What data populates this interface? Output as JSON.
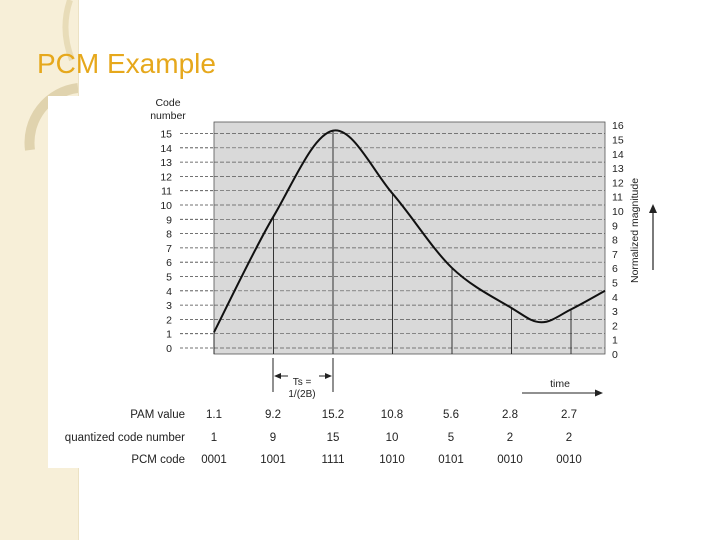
{
  "slide": {
    "title": "PCM Example",
    "colors": {
      "title": "#e6a81c",
      "band": "#f7efd8",
      "grid_fill": "#d9d9d9"
    }
  },
  "diagram": {
    "left_axis_title_line1": "Code",
    "left_axis_title_line2": "number",
    "left_ticks": [
      "0",
      "1",
      "2",
      "3",
      "4",
      "5",
      "6",
      "7",
      "8",
      "9",
      "10",
      "11",
      "12",
      "13",
      "14",
      "15"
    ],
    "right_ticks": [
      "0",
      "1",
      "2",
      "3",
      "4",
      "5",
      "6",
      "7",
      "8",
      "9",
      "10",
      "11",
      "12",
      "13",
      "14",
      "15",
      "16"
    ],
    "right_axis_label": "Normalized magnitude",
    "time_label": "time",
    "ts_label_line1": "Ts =",
    "ts_label_line2": "1/(2B)",
    "curve_samples": [
      {
        "t": 0,
        "v": 1.1
      },
      {
        "t": 1,
        "v": 9.2
      },
      {
        "t": 2,
        "v": 15.2
      },
      {
        "t": 3,
        "v": 10.8
      },
      {
        "t": 4,
        "v": 5.6
      },
      {
        "t": 5,
        "v": 2.8
      },
      {
        "t": 6,
        "v": 2.7
      }
    ]
  },
  "table": {
    "row_labels": [
      "PAM value",
      "quantized code number",
      "PCM code"
    ],
    "pam_values": [
      "1.1",
      "9.2",
      "15.2",
      "10.8",
      "5.6",
      "2.8",
      "2.7"
    ],
    "code_numbers": [
      "1",
      "9",
      "15",
      "10",
      "5",
      "2",
      "2"
    ],
    "pcm_codes": [
      "0001",
      "1001",
      "1111",
      "1010",
      "0101",
      "0010",
      "0010"
    ]
  }
}
